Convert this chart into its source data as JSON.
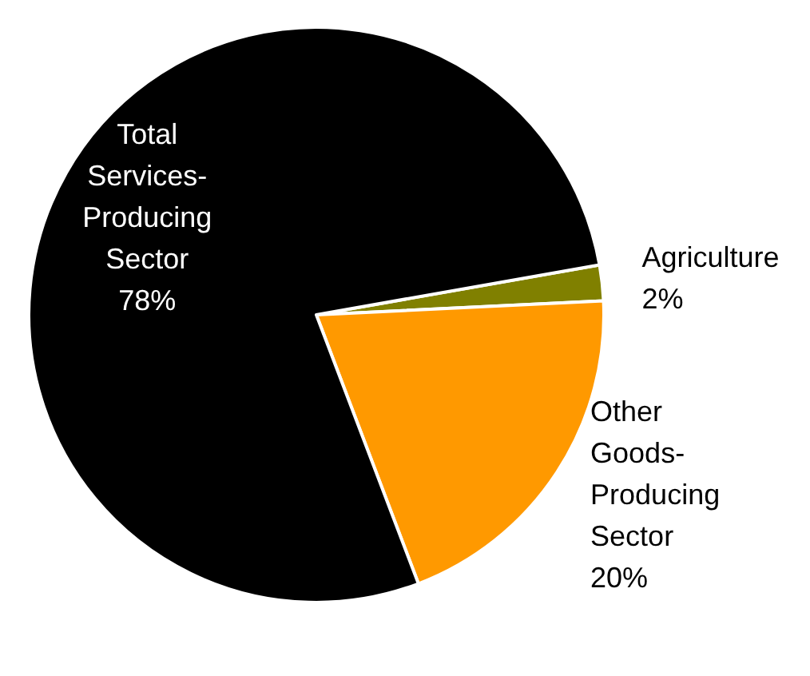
{
  "chart_data": {
    "type": "pie",
    "categories": [
      "Agriculture",
      "Other\nGoods-\nProducing\nSector",
      "Total\nServices-\nProducing\nSector"
    ],
    "values": [
      2,
      20,
      78
    ],
    "value_labels": [
      "2%",
      "20%",
      "78%"
    ],
    "colors": [
      "#808000",
      "#ff9900",
      "#000000"
    ],
    "legend": false
  }
}
